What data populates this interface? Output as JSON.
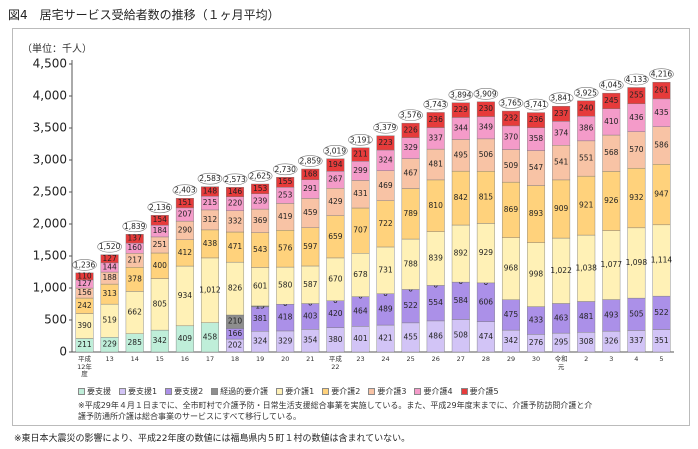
{
  "chart_data": {
    "type": "stacked_bar",
    "title": "図4　居宅サービス受給者数の推移（１ヶ月平均）",
    "y_label": "（単位：千人）",
    "categories": [
      "平成12年度",
      "13",
      "14",
      "15",
      "16",
      "17",
      "18",
      "19",
      "20",
      "21",
      "平成22",
      "23",
      "24",
      "25",
      "26",
      "27",
      "28",
      "29",
      "30",
      "令和元",
      "2",
      "3",
      "4",
      "5"
    ],
    "series": [
      {
        "name": "要支援",
        "color": "#bfeed9",
        "values": [
          211,
          229,
          285,
          342,
          409,
          458,
          null,
          null,
          null,
          null,
          null,
          null,
          null,
          null,
          null,
          null,
          null,
          null,
          null,
          null,
          null,
          null,
          null,
          null
        ]
      },
      {
        "name": "要支援1",
        "color": "#d2c4f6",
        "values": [
          null,
          null,
          null,
          null,
          null,
          null,
          202,
          324,
          329,
          354,
          380,
          401,
          421,
          455,
          486,
          508,
          474,
          342,
          276,
          295,
          308,
          326,
          337,
          351
        ]
      },
      {
        "name": "要支援2",
        "color": "#ab90e8",
        "values": [
          null,
          null,
          null,
          null,
          null,
          null,
          166,
          381,
          418,
          403,
          420,
          464,
          489,
          522,
          554,
          584,
          606,
          475,
          433,
          463,
          481,
          493,
          505,
          522
        ]
      },
      {
        "name": "経過的要介護",
        "color": "#8e8e8e",
        "values": [
          null,
          null,
          null,
          null,
          null,
          null,
          210,
          15,
          0,
          0,
          0,
          0,
          0,
          0,
          0,
          0,
          0,
          null,
          null,
          null,
          null,
          null,
          null,
          null
        ]
      },
      {
        "name": "要介護1",
        "color": "#fff1b6",
        "values": [
          390,
          519,
          662,
          805,
          934,
          1012,
          826,
          601,
          580,
          587,
          670,
          678,
          731,
          788,
          839,
          892,
          929,
          968,
          998,
          1022,
          1038,
          1077,
          1098,
          1114
        ],
        "value_labels": [
          "390",
          "519",
          "662",
          "805",
          "934",
          "1,012",
          "826",
          "601",
          "580",
          "587",
          "670",
          "678",
          "731",
          "788",
          "839",
          "892",
          "929",
          "968",
          "998",
          "1,022",
          "1,038",
          "1,077",
          "1,098",
          "1,114"
        ]
      },
      {
        "name": "要介護2",
        "color": "#ffd27c",
        "values": [
          242,
          313,
          378,
          400,
          412,
          438,
          471,
          543,
          576,
          597,
          659,
          707,
          722,
          789,
          810,
          842,
          815,
          869,
          893,
          909,
          921,
          926,
          932,
          947
        ]
      },
      {
        "name": "要介護3",
        "color": "#f8c3a5",
        "values": [
          156,
          188,
          217,
          251,
          290,
          312,
          332,
          369,
          419,
          459,
          429,
          431,
          469,
          467,
          481,
          495,
          506,
          509,
          547,
          541,
          551,
          568,
          570,
          586
        ]
      },
      {
        "name": "要介護4",
        "color": "#f49bc9",
        "values": [
          127,
          144,
          160,
          184,
          207,
          215,
          220,
          239,
          253,
          291,
          267,
          299,
          324,
          329,
          337,
          344,
          349,
          370,
          358,
          374,
          386,
          410,
          436,
          435
        ]
      },
      {
        "name": "要介護5",
        "color": "#e63b3b",
        "values": [
          110,
          127,
          137,
          154,
          151,
          148,
          146,
          153,
          155,
          168,
          194,
          211,
          223,
          226,
          236,
          229,
          230,
          232,
          236,
          237,
          240,
          245,
          255,
          261
        ]
      }
    ],
    "totals": {
      "values": [
        1236,
        1520,
        1839,
        2136,
        2403,
        2583,
        2573,
        2625,
        2730,
        2859,
        3019,
        3191,
        3379,
        3576,
        3743,
        3894,
        3909,
        3765,
        3741,
        3841,
        3925,
        4045,
        4133,
        4216
      ],
      "value_labels": [
        "1,236",
        "1,520",
        "1,839",
        "2,136",
        "2,403",
        "2,583",
        "2,573",
        "2,625",
        "2,730",
        "2,859",
        "3,019",
        "3,191",
        "3,379",
        "3,576",
        "3,743",
        "3,894",
        "3,909",
        "3,765",
        "3,741",
        "3,841",
        "3,925",
        "4,045",
        "4,133",
        "4,216"
      ]
    },
    "ylim": [
      0,
      4500
    ],
    "yticks": [
      0,
      500,
      {
        "value": 1000,
        "label": "1,000"
      },
      {
        "value": 1500,
        "label": "1,500"
      },
      {
        "value": 2000,
        "label": "2,000"
      },
      {
        "value": 2500,
        "label": "2,500"
      },
      {
        "value": 3000,
        "label": "3,000"
      },
      {
        "value": 3500,
        "label": "3,500"
      },
      {
        "value": 4000,
        "label": "4,000"
      },
      {
        "value": 4500,
        "label": "4,500"
      }
    ],
    "grid": false,
    "notes": [
      "※平成29年４月１日までに、全市町村で介護予防・日常生活支援総合事業を実施している。また、平成29年度末までに、介護予防訪問介護と介護予防通所介護は総合事業のサービスにすべて移行している。"
    ],
    "footnote": "※東日本大震災の影響により、平成22年度の数値には福島県内５町１村の数値は含まれていない。"
  }
}
